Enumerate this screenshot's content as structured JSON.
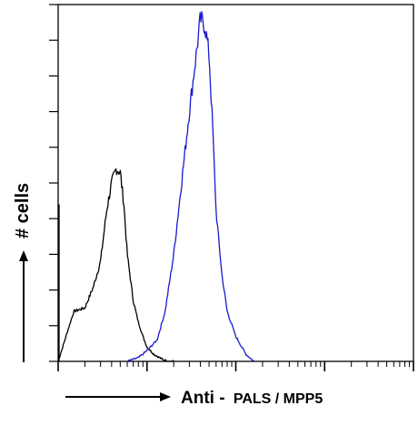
{
  "chart_data": {
    "type": "line",
    "title": "",
    "ylabel": "# cells",
    "xlabel": "Anti - PALS / MPP5",
    "xlabel_prefix": "Anti - ",
    "xlabel_antigen": "PALS / MPP5",
    "x_scale": "log",
    "xlim": [
      1,
      10000
    ],
    "ylim": [
      0,
      100
    ],
    "grid": false,
    "tick_labels_shown": false,
    "series": [
      {
        "color": "#000000",
        "x": [
          1.0,
          1.5,
          2.0,
          2.5,
          3.0,
          3.5,
          4.0,
          4.5,
          5.0,
          5.5,
          6.0,
          7.0,
          8.0,
          9.0,
          10,
          12,
          15,
          18,
          20
        ],
        "y": [
          0,
          14,
          15,
          21,
          28,
          42,
          50,
          54,
          53,
          44,
          30,
          17,
          11,
          7,
          4,
          2,
          0.5,
          0,
          0
        ]
      },
      {
        "color": "#1a1acc",
        "x": [
          6,
          8,
          10,
          13,
          16,
          20,
          25,
          30,
          35,
          40,
          45,
          50,
          55,
          60,
          70,
          80,
          100,
          130,
          160
        ],
        "y": [
          0,
          1,
          3,
          6,
          14,
          30,
          52,
          70,
          84,
          96,
          94,
          86,
          65,
          42,
          24,
          14,
          7,
          2,
          0
        ]
      }
    ]
  },
  "colors": {
    "axis": "#000000",
    "series_black": "#000000",
    "series_blue": "#1a1acc"
  }
}
